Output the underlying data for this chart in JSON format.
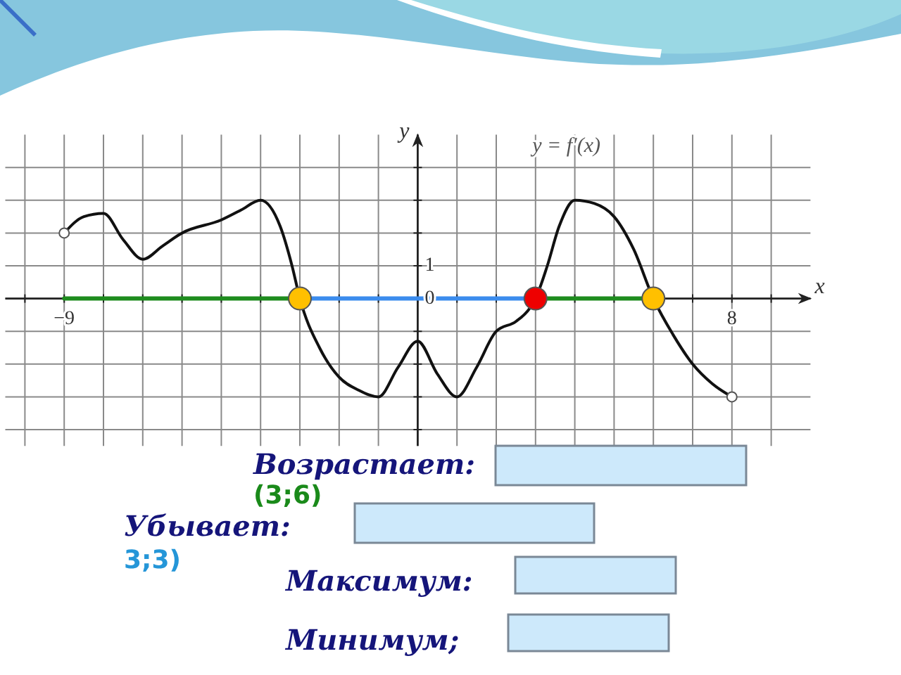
{
  "chart_data": {
    "type": "line",
    "xlabel": "x",
    "ylabel": "y",
    "xlim": [
      -10.5,
      10
    ],
    "ylim": [
      -4.5,
      5
    ],
    "xticks": [
      {
        "value": -10,
        "label": null
      },
      {
        "value": -9,
        "label": "−9"
      },
      {
        "value": -8,
        "label": null
      },
      {
        "value": -7,
        "label": null
      },
      {
        "value": -6,
        "label": null
      },
      {
        "value": -5,
        "label": null
      },
      {
        "value": -4,
        "label": null
      },
      {
        "value": -3,
        "label": null
      },
      {
        "value": -2,
        "label": null
      },
      {
        "value": -1,
        "label": null
      },
      {
        "value": 0,
        "label": null
      },
      {
        "value": 1,
        "label": null
      },
      {
        "value": 2,
        "label": null
      },
      {
        "value": 3,
        "label": null
      },
      {
        "value": 4,
        "label": null
      },
      {
        "value": 5,
        "label": null
      },
      {
        "value": 6,
        "label": null
      },
      {
        "value": 7,
        "label": null
      },
      {
        "value": 8,
        "label": "8"
      },
      {
        "value": 9,
        "label": null
      }
    ],
    "yticks": [
      {
        "value": -4,
        "label": null
      },
      {
        "value": -3,
        "label": null
      },
      {
        "value": -2,
        "label": null
      },
      {
        "value": -1,
        "label": null
      },
      {
        "value": 0,
        "label": "0"
      },
      {
        "value": 1,
        "label": "1"
      },
      {
        "value": 2,
        "label": null
      },
      {
        "value": 3,
        "label": null
      },
      {
        "value": 4,
        "label": null
      }
    ],
    "grid": true,
    "marker": "none",
    "line_style": "solid",
    "series": [
      {
        "name": "y = f′(x)",
        "color": "#111111",
        "x": [
          -9,
          -8.5,
          -8,
          -7.5,
          -7,
          -6.5,
          -6,
          -5,
          -4.5,
          -4,
          -3.5,
          -3.2,
          -3,
          -2.5,
          -2,
          -1.5,
          -1,
          -0.5,
          0,
          0.5,
          1,
          1.5,
          2,
          2.5,
          2.85,
          3,
          3.3,
          3.6,
          4,
          4.5,
          5,
          5.5,
          6,
          6.5,
          7,
          7.5,
          8
        ],
        "values": [
          2,
          2.5,
          2.6,
          1.8,
          1.2,
          1.6,
          2,
          2.4,
          2.7,
          3,
          2.2,
          1,
          0,
          -1.5,
          -2.4,
          -2.8,
          -3,
          -2.1,
          -1.3,
          -2.3,
          -3,
          -2.1,
          -1,
          -0.7,
          -0.3,
          0,
          1,
          2.2,
          3,
          2.9,
          2.5,
          1.5,
          0,
          -1.1,
          -2,
          -2.6,
          -3
        ]
      },
      {
        "type": "line",
        "color": "#1e8c1e",
        "x": [
          -9,
          -3
        ],
        "values": [
          0,
          0
        ]
      },
      {
        "type": "line",
        "color": "#3b8ced",
        "x": [
          -3,
          3
        ],
        "values": [
          0,
          0
        ]
      },
      {
        "type": "line",
        "color": "#1e8c1e",
        "x": [
          3,
          6
        ],
        "values": [
          0,
          0
        ]
      },
      {
        "type": "scatter",
        "marker": "circle",
        "colors": [
          "#ffc000",
          "#ee0000",
          "#ffc000"
        ],
        "x": [
          -3,
          3,
          6
        ],
        "values": [
          0,
          0,
          0
        ]
      },
      {
        "type": "scatter",
        "marker": "circle",
        "color": "#ffffff",
        "x": [
          -9,
          8
        ],
        "values": [
          2,
          -3
        ]
      }
    ],
    "annotations": [
      "Возрастает:",
      "(3;6)",
      "Убывает:",
      "3;3)",
      "Максимум:",
      "Минимум;"
    ]
  }
}
